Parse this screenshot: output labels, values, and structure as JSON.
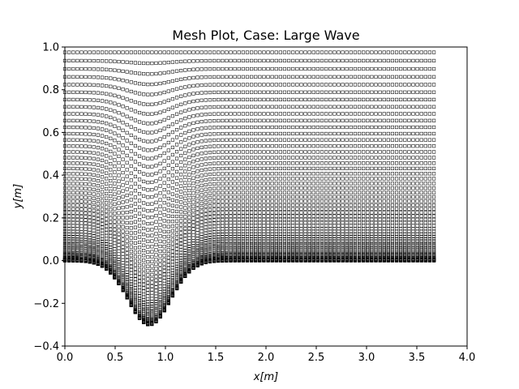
{
  "chart_data": {
    "type": "scatter",
    "title": "Mesh Plot, Case: Large Wave",
    "xlabel": "x[m]",
    "ylabel": "y[m]",
    "xlim": [
      0.0,
      4.0
    ],
    "ylim": [
      -0.4,
      1.0
    ],
    "x_ticks": [
      "0.0",
      "0.5",
      "1.0",
      "1.5",
      "2.0",
      "2.5",
      "3.0",
      "3.5",
      "4.0"
    ],
    "y_ticks": [
      "−0.4",
      "−0.2",
      "0.0",
      "0.2",
      "0.4",
      "0.6",
      "0.8",
      "1.0"
    ],
    "grid": false,
    "marker": "open-square",
    "marker_color": "#000000",
    "mesh": {
      "x_start": 0.0,
      "x_end": 3.67,
      "columns": 90,
      "rows": 60,
      "top": 0.975,
      "row_clustering": 2.4,
      "bottom_profile": {
        "form": "gaussian",
        "center_x": 0.84,
        "depth": 0.3,
        "width": 0.3
      }
    }
  }
}
